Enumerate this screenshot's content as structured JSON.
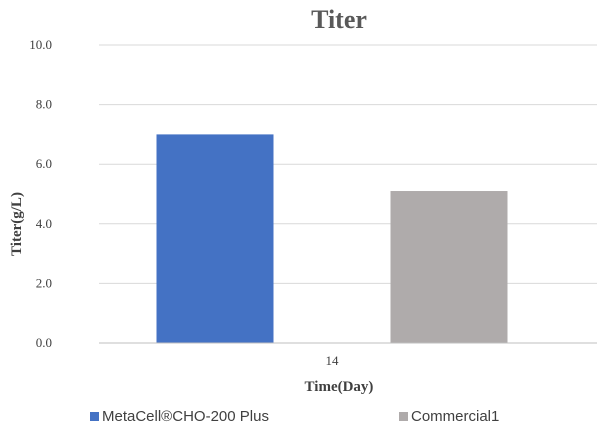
{
  "chart_data": {
    "type": "bar",
    "title": "Titer",
    "xlabel": "Time(Day)",
    "ylabel": "Titer(g/L)",
    "categories": [
      "14"
    ],
    "ylim": [
      0,
      10
    ],
    "yticks": [
      "0.0",
      "2.0",
      "4.0",
      "6.0",
      "8.0",
      "10.0"
    ],
    "grid": true,
    "legend_position": "bottom",
    "series": [
      {
        "name": "MetaCell®CHO-200 Plus",
        "values": [
          7.0
        ],
        "color": "#4472c4"
      },
      {
        "name": "Commercial1",
        "values": [
          5.1
        ],
        "color": "#afabab"
      }
    ]
  }
}
